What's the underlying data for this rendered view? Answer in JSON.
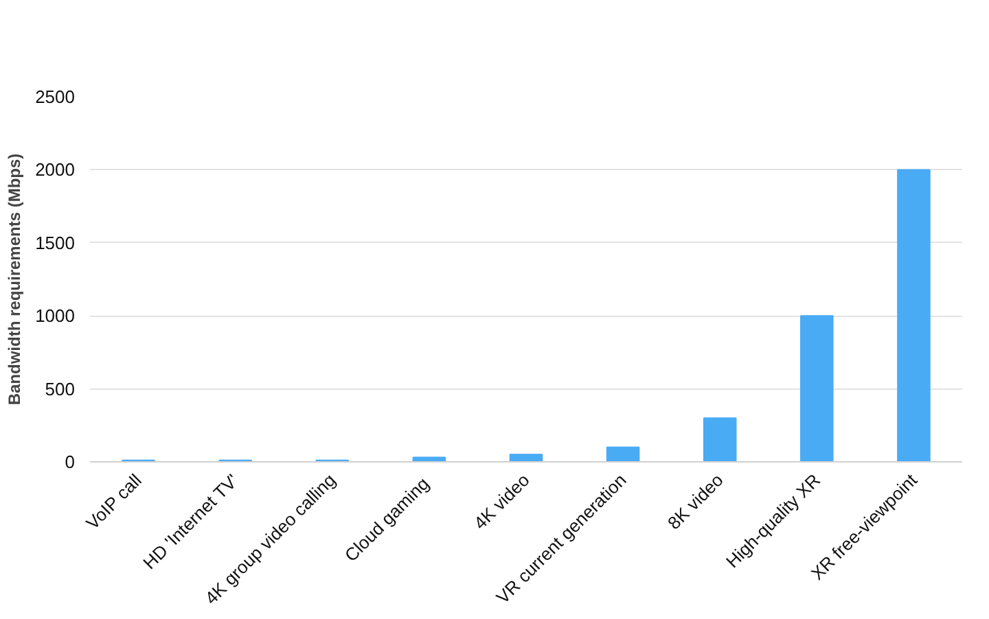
{
  "chart_data": {
    "type": "bar",
    "ylabel": "Bandwidth requirements (Mbps)",
    "categories": [
      "VoIP call",
      "HD 'Internet TV'",
      "4K group video calling",
      "Cloud  gaming",
      "4K video",
      "VR current generation",
      "8K video",
      "High-quality XR",
      "XR free-viewpoint"
    ],
    "values": [
      10,
      10,
      10,
      30,
      50,
      100,
      300,
      1000,
      2000
    ],
    "color": "#4aabf5",
    "ylim": [
      0,
      2500
    ],
    "yticks": [
      0,
      500,
      1000,
      1500,
      2000,
      2500
    ],
    "grid": "y"
  }
}
